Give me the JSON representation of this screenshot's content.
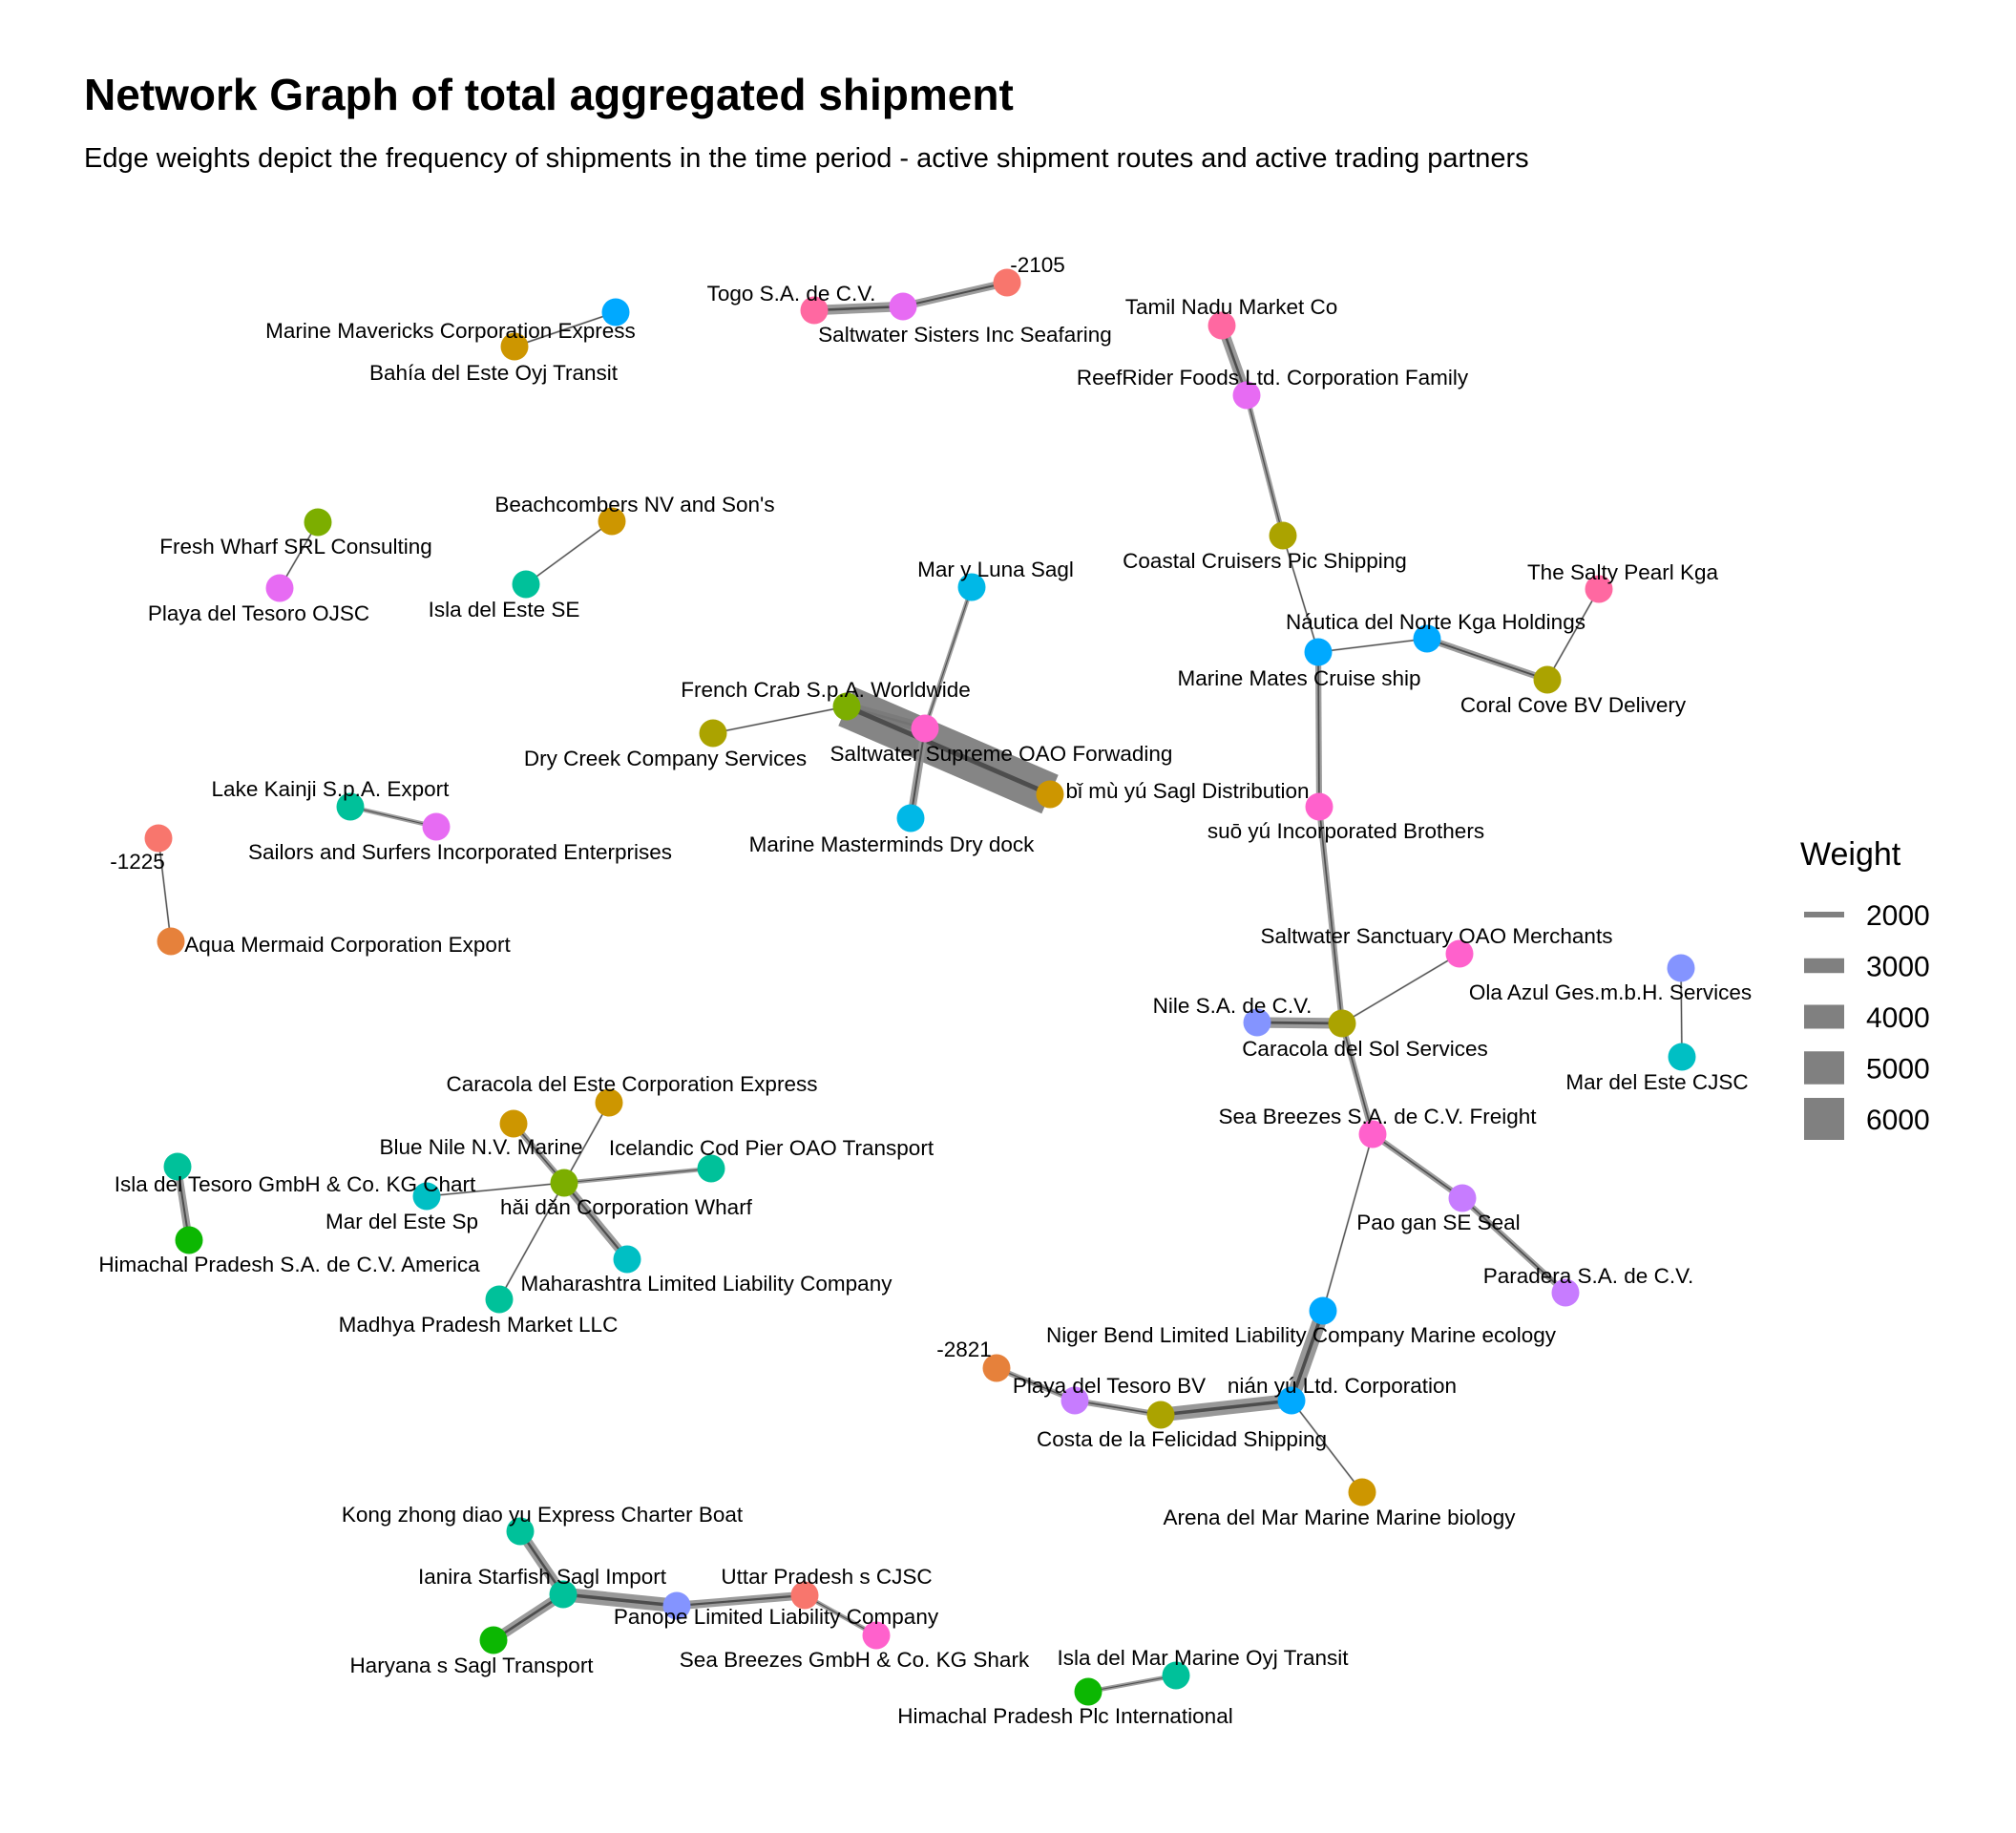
{
  "header": {
    "title": "Network Graph of total aggregated shipment",
    "subtitle": "Edge weights depict the frequency of shipments in the time period - active shipment routes and active trading partners"
  },
  "legend": {
    "title": "Weight",
    "items": [
      {
        "label": "2000",
        "value": 2000
      },
      {
        "label": "3000",
        "value": 3000
      },
      {
        "label": "4000",
        "value": 4000
      },
      {
        "label": "5000",
        "value": 5000
      },
      {
        "label": "6000",
        "value": 6000
      }
    ]
  },
  "colors": {
    "edge": "#4d4d4d",
    "c_red": "#F8766D",
    "c_orange": "#E6813B",
    "c_gold": "#CD9600",
    "c_olive": "#ABA300",
    "c_lime": "#7CAE00",
    "c_green": "#0CB702",
    "c_teal": "#00C19A",
    "c_cyan": "#00BFC4",
    "c_sky": "#00B8E7",
    "c_blue": "#00A9FF",
    "c_periwinkle": "#8494FF",
    "c_violet": "#C77CFF",
    "c_orchid": "#E76BF3",
    "c_pink": "#FF61CC",
    "c_rose": "#FF68A1"
  },
  "nodes": [
    {
      "id": "marine_mavericks",
      "label": "Marine Mavericks Corporation Express",
      "color": "c_blue"
    },
    {
      "id": "bahia_del_este",
      "label": "Bahía del Este Oyj Transit",
      "color": "c_gold"
    },
    {
      "id": "togo",
      "label": "Togo  S.A. de C.V.",
      "color": "c_rose"
    },
    {
      "id": "saltwater_sisters",
      "label": "Saltwater Sisters Inc Seafaring",
      "color": "c_orchid"
    },
    {
      "id": "n_2105",
      "label": "-2105",
      "color": "c_red"
    },
    {
      "id": "tamil_nadu",
      "label": "Tamil Nadu  Market Co",
      "color": "c_rose"
    },
    {
      "id": "reefrider",
      "label": "ReefRider Foods Ltd. Corporation Family",
      "color": "c_orchid"
    },
    {
      "id": "beachcombers",
      "label": "Beachcombers NV and Son's",
      "color": "c_gold"
    },
    {
      "id": "isla_del_este",
      "label": "Isla del Este SE",
      "color": "c_teal"
    },
    {
      "id": "fresh_wharf",
      "label": "Fresh Wharf SRL Consulting",
      "color": "c_lime"
    },
    {
      "id": "playa_tesoro_ojsc",
      "label": "Playa del Tesoro OJSC",
      "color": "c_orchid"
    },
    {
      "id": "coastal_cruisers",
      "label": "Coastal Cruisers Pic Shipping",
      "color": "c_olive"
    },
    {
      "id": "salty_pearl",
      "label": "The Salty Pearl Kga",
      "color": "c_rose"
    },
    {
      "id": "nautica_norte",
      "label": "Náutica del Norte Kga Holdings",
      "color": "c_blue"
    },
    {
      "id": "marine_mates",
      "label": "Marine Mates Cruise ship",
      "color": "c_blue"
    },
    {
      "id": "coral_cove",
      "label": "Coral Cove BV Delivery",
      "color": "c_olive"
    },
    {
      "id": "mar_y_luna",
      "label": "Mar y Luna Sagl",
      "color": "c_sky"
    },
    {
      "id": "french_crab",
      "label": "French Crab S.p.A. Worldwide",
      "color": "c_lime"
    },
    {
      "id": "saltwater_supreme",
      "label": "Saltwater Supreme OAO Forwading",
      "color": "c_pink"
    },
    {
      "id": "dry_creek",
      "label": "Dry Creek Company Services",
      "color": "c_olive"
    },
    {
      "id": "bi_mu_yu",
      "label": "bǐ mù yú Sagl Distribution",
      "color": "c_gold"
    },
    {
      "id": "marine_masterminds",
      "label": "Marine Masterminds Dry dock",
      "color": "c_sky"
    },
    {
      "id": "lake_kainji",
      "label": "Lake Kainji  S.p.A. Export",
      "color": "c_teal"
    },
    {
      "id": "sailors_surfers",
      "label": "Sailors and Surfers Incorporated Enterprises",
      "color": "c_orchid"
    },
    {
      "id": "n_1225",
      "label": "-1225",
      "color": "c_red"
    },
    {
      "id": "aqua_mermaid",
      "label": "Aqua Mermaid Corporation Export",
      "color": "c_orange"
    },
    {
      "id": "suo_yu",
      "label": "suō yú Incorporated Brothers",
      "color": "c_pink"
    },
    {
      "id": "saltwater_sanctuary",
      "label": "Saltwater Sanctuary OAO Merchants",
      "color": "c_pink"
    },
    {
      "id": "ola_azul",
      "label": "Ola Azul Ges.m.b.H. Services",
      "color": "c_periwinkle"
    },
    {
      "id": "mar_del_este_cjsc",
      "label": "Mar del Este CJSC",
      "color": "c_cyan"
    },
    {
      "id": "nile_sa",
      "label": "Nile   S.A. de C.V.",
      "color": "c_periwinkle"
    },
    {
      "id": "caracola_sol",
      "label": "Caracola del Sol Services",
      "color": "c_olive"
    },
    {
      "id": "sea_breezes_sa",
      "label": "Sea Breezes S.A. de C.V. Freight",
      "color": "c_pink"
    },
    {
      "id": "pao_gan",
      "label": "Pao gan SE Seal",
      "color": "c_violet"
    },
    {
      "id": "paradera",
      "label": "Paradera S.A. de C.V.",
      "color": "c_violet"
    },
    {
      "id": "caracola_este",
      "label": "Caracola del Este Corporation Express",
      "color": "c_gold"
    },
    {
      "id": "blue_nile",
      "label": "Blue Nile  N.V. Marine",
      "color": "c_gold"
    },
    {
      "id": "icelandic_cod",
      "label": "Icelandic Cod Pier OAO Transport",
      "color": "c_teal"
    },
    {
      "id": "isla_tesoro_gmbh",
      "label": "Isla del Tesoro GmbH & Co. KG Chart",
      "color": "c_teal"
    },
    {
      "id": "mar_del_este_sp",
      "label": "Mar del Este Sp",
      "color": "c_cyan"
    },
    {
      "id": "hai_dan",
      "label": "hǎi dǎn Corporation Wharf",
      "color": "c_lime"
    },
    {
      "id": "himachal_sa",
      "label": "Himachal Pradesh   S.A. de C.V. America",
      "color": "c_green"
    },
    {
      "id": "maharashtra",
      "label": "Maharashtra   Limited Liability Company",
      "color": "c_cyan"
    },
    {
      "id": "madhya_pradesh",
      "label": "Madhya Pradesh  Market LLC",
      "color": "c_teal"
    },
    {
      "id": "niger_bend",
      "label": "Niger Bend   Limited Liability Company Marine ecology",
      "color": "c_blue"
    },
    {
      "id": "n_2821",
      "label": "-2821",
      "color": "c_orange"
    },
    {
      "id": "playa_tesoro_bv",
      "label": "Playa del Tesoro BV",
      "color": "c_violet"
    },
    {
      "id": "nian_yu",
      "label": "nián yú Ltd. Corporation",
      "color": "c_blue"
    },
    {
      "id": "costa_felicidad",
      "label": "Costa de la Felicidad Shipping",
      "color": "c_olive"
    },
    {
      "id": "arena_del_mar",
      "label": "Arena del Mar Marine Marine biology",
      "color": "c_gold"
    },
    {
      "id": "kong_zhong",
      "label": "Kong zhong diao yu  Express Charter Boat",
      "color": "c_teal"
    },
    {
      "id": "ianira",
      "label": "Ianira Starfish Sagl Import",
      "color": "c_teal"
    },
    {
      "id": "uttar_pradesh",
      "label": "Uttar Pradesh s CJSC",
      "color": "c_red"
    },
    {
      "id": "panope",
      "label": "Panope Limited Liability Company",
      "color": "c_periwinkle"
    },
    {
      "id": "haryana",
      "label": "Haryana s Sagl Transport",
      "color": "c_green"
    },
    {
      "id": "sea_breezes_gmbh",
      "label": "Sea Breezes GmbH & Co. KG Shark",
      "color": "c_pink"
    },
    {
      "id": "isla_del_mar",
      "label": "Isla del Mar Marine Oyj Transit",
      "color": "c_teal"
    },
    {
      "id": "himachal_plc",
      "label": "Himachal Pradesh   Plc International",
      "color": "c_green"
    }
  ],
  "edges": [
    {
      "from": "marine_mavericks",
      "to": "bahia_del_este",
      "weight": 1500
    },
    {
      "from": "togo",
      "to": "saltwater_sisters",
      "weight": 2500
    },
    {
      "from": "saltwater_sisters",
      "to": "n_2105",
      "weight": 2200
    },
    {
      "from": "tamil_nadu",
      "to": "reefrider",
      "weight": 2500
    },
    {
      "from": "reefrider",
      "to": "coastal_cruisers",
      "weight": 1900
    },
    {
      "from": "coastal_cruisers",
      "to": "marine_mates",
      "weight": 1500
    },
    {
      "from": "beachcombers",
      "to": "isla_del_este",
      "weight": 1500
    },
    {
      "from": "fresh_wharf",
      "to": "playa_tesoro_ojsc",
      "weight": 1500
    },
    {
      "from": "marine_mates",
      "to": "nautica_norte",
      "weight": 1500
    },
    {
      "from": "nautica_norte",
      "to": "coral_cove",
      "weight": 2100
    },
    {
      "from": "salty_pearl",
      "to": "coral_cove",
      "weight": 1500
    },
    {
      "from": "marine_mates",
      "to": "suo_yu",
      "weight": 2000
    },
    {
      "from": "suo_yu",
      "to": "caracola_sol",
      "weight": 2000
    },
    {
      "from": "mar_y_luna",
      "to": "saltwater_supreme",
      "weight": 1800
    },
    {
      "from": "french_crab",
      "to": "saltwater_supreme",
      "weight": 2500
    },
    {
      "from": "dry_creek",
      "to": "french_crab",
      "weight": 1500
    },
    {
      "from": "french_crab",
      "to": "bi_mu_yu",
      "weight": 6500
    },
    {
      "from": "saltwater_supreme",
      "to": "marine_masterminds",
      "weight": 2200
    },
    {
      "from": "lake_kainji",
      "to": "sailors_surfers",
      "weight": 1800
    },
    {
      "from": "n_1225",
      "to": "aqua_mermaid",
      "weight": 1500
    },
    {
      "from": "saltwater_sanctuary",
      "to": "caracola_sol",
      "weight": 1500
    },
    {
      "from": "nile_sa",
      "to": "caracola_sol",
      "weight": 2600
    },
    {
      "from": "ola_azul",
      "to": "mar_del_este_cjsc",
      "weight": 1500
    },
    {
      "from": "caracola_sol",
      "to": "sea_breezes_sa",
      "weight": 2000
    },
    {
      "from": "sea_breezes_sa",
      "to": "pao_gan",
      "weight": 2000
    },
    {
      "from": "pao_gan",
      "to": "paradera",
      "weight": 2000
    },
    {
      "from": "sea_breezes_sa",
      "to": "niger_bend",
      "weight": 1500
    },
    {
      "from": "niger_bend",
      "to": "nian_yu",
      "weight": 3000
    },
    {
      "from": "n_2821",
      "to": "playa_tesoro_bv",
      "weight": 1900
    },
    {
      "from": "playa_tesoro_bv",
      "to": "costa_felicidad",
      "weight": 2000
    },
    {
      "from": "costa_felicidad",
      "to": "nian_yu",
      "weight": 3000
    },
    {
      "from": "nian_yu",
      "to": "arena_del_mar",
      "weight": 1500
    },
    {
      "from": "caracola_este",
      "to": "hai_dan",
      "weight": 1500
    },
    {
      "from": "blue_nile",
      "to": "hai_dan",
      "weight": 2000
    },
    {
      "from": "icelandic_cod",
      "to": "hai_dan",
      "weight": 1800
    },
    {
      "from": "mar_del_este_sp",
      "to": "hai_dan",
      "weight": 1500
    },
    {
      "from": "hai_dan",
      "to": "maharashtra",
      "weight": 2300
    },
    {
      "from": "hai_dan",
      "to": "madhya_pradesh",
      "weight": 1500
    },
    {
      "from": "isla_tesoro_gmbh",
      "to": "himachal_sa",
      "weight": 2200
    },
    {
      "from": "kong_zhong",
      "to": "ianira",
      "weight": 2500
    },
    {
      "from": "ianira",
      "to": "haryana",
      "weight": 2500
    },
    {
      "from": "ianira",
      "to": "panope",
      "weight": 3000
    },
    {
      "from": "panope",
      "to": "uttar_pradesh",
      "weight": 2300
    },
    {
      "from": "uttar_pradesh",
      "to": "sea_breezes_gmbh",
      "weight": 1800
    },
    {
      "from": "himachal_plc",
      "to": "isla_del_mar",
      "weight": 1800
    }
  ]
}
